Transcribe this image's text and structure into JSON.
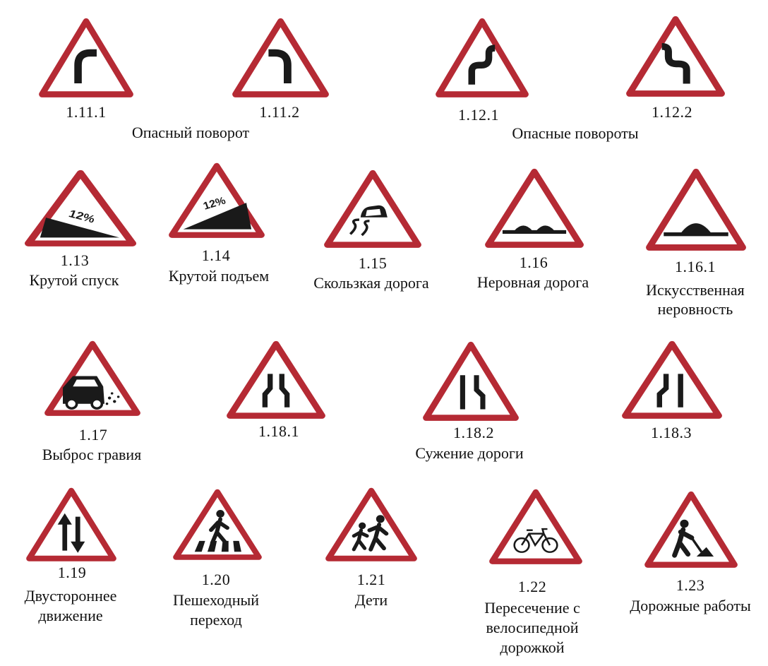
{
  "colors": {
    "border": "#b52a34",
    "symbol": "#1a1a1a",
    "ground": "#ffffff"
  },
  "signs": [
    {
      "code": "1.11.1",
      "icon": "curve-right-icon"
    },
    {
      "code": "1.11.2",
      "icon": "curve-left-icon"
    },
    {
      "code": "1.12.1",
      "icon": "double-curve-right-icon"
    },
    {
      "code": "1.12.2",
      "icon": "double-curve-left-icon"
    },
    {
      "code": "1.13",
      "icon": "steep-descent-icon",
      "grade": "12%"
    },
    {
      "code": "1.14",
      "icon": "steep-ascent-icon",
      "grade": "12%"
    },
    {
      "code": "1.15",
      "icon": "skidding-car-icon"
    },
    {
      "code": "1.16",
      "icon": "uneven-road-icon"
    },
    {
      "code": "1.16.1",
      "icon": "speed-bump-icon"
    },
    {
      "code": "1.17",
      "icon": "gravel-car-icon"
    },
    {
      "code": "1.18.1",
      "icon": "road-narrows-both-icon"
    },
    {
      "code": "1.18.2",
      "icon": "road-narrows-right-icon"
    },
    {
      "code": "1.18.3",
      "icon": "road-narrows-left-icon"
    },
    {
      "code": "1.19",
      "icon": "two-way-arrows-icon"
    },
    {
      "code": "1.20",
      "icon": "pedestrian-crossing-icon"
    },
    {
      "code": "1.21",
      "icon": "children-icon"
    },
    {
      "code": "1.22",
      "icon": "bicycle-icon"
    },
    {
      "code": "1.23",
      "icon": "road-works-icon"
    }
  ],
  "captions": {
    "dangerous_curve": "Опасный поворот",
    "dangerous_curves": "Опасные повороты",
    "steep_descent": "Крутой спуск",
    "steep_ascent": "Крутой подъем",
    "slippery_road": "Скользкая дорога",
    "uneven_road": "Неровная дорога",
    "artificial_bump": [
      "Искусственная",
      "неровность"
    ],
    "gravel": "Выброс гравия",
    "road_narrows": "Сужение дороги",
    "two_way": [
      "Двустороннее",
      "движение"
    ],
    "pedestrian_crossing": [
      "Пешеходный",
      "переход"
    ],
    "children": "Дети",
    "bicycle_crossing": [
      "Пересечение с",
      "велосипедной",
      "дорожкой"
    ],
    "road_works": "Дорожные работы"
  }
}
